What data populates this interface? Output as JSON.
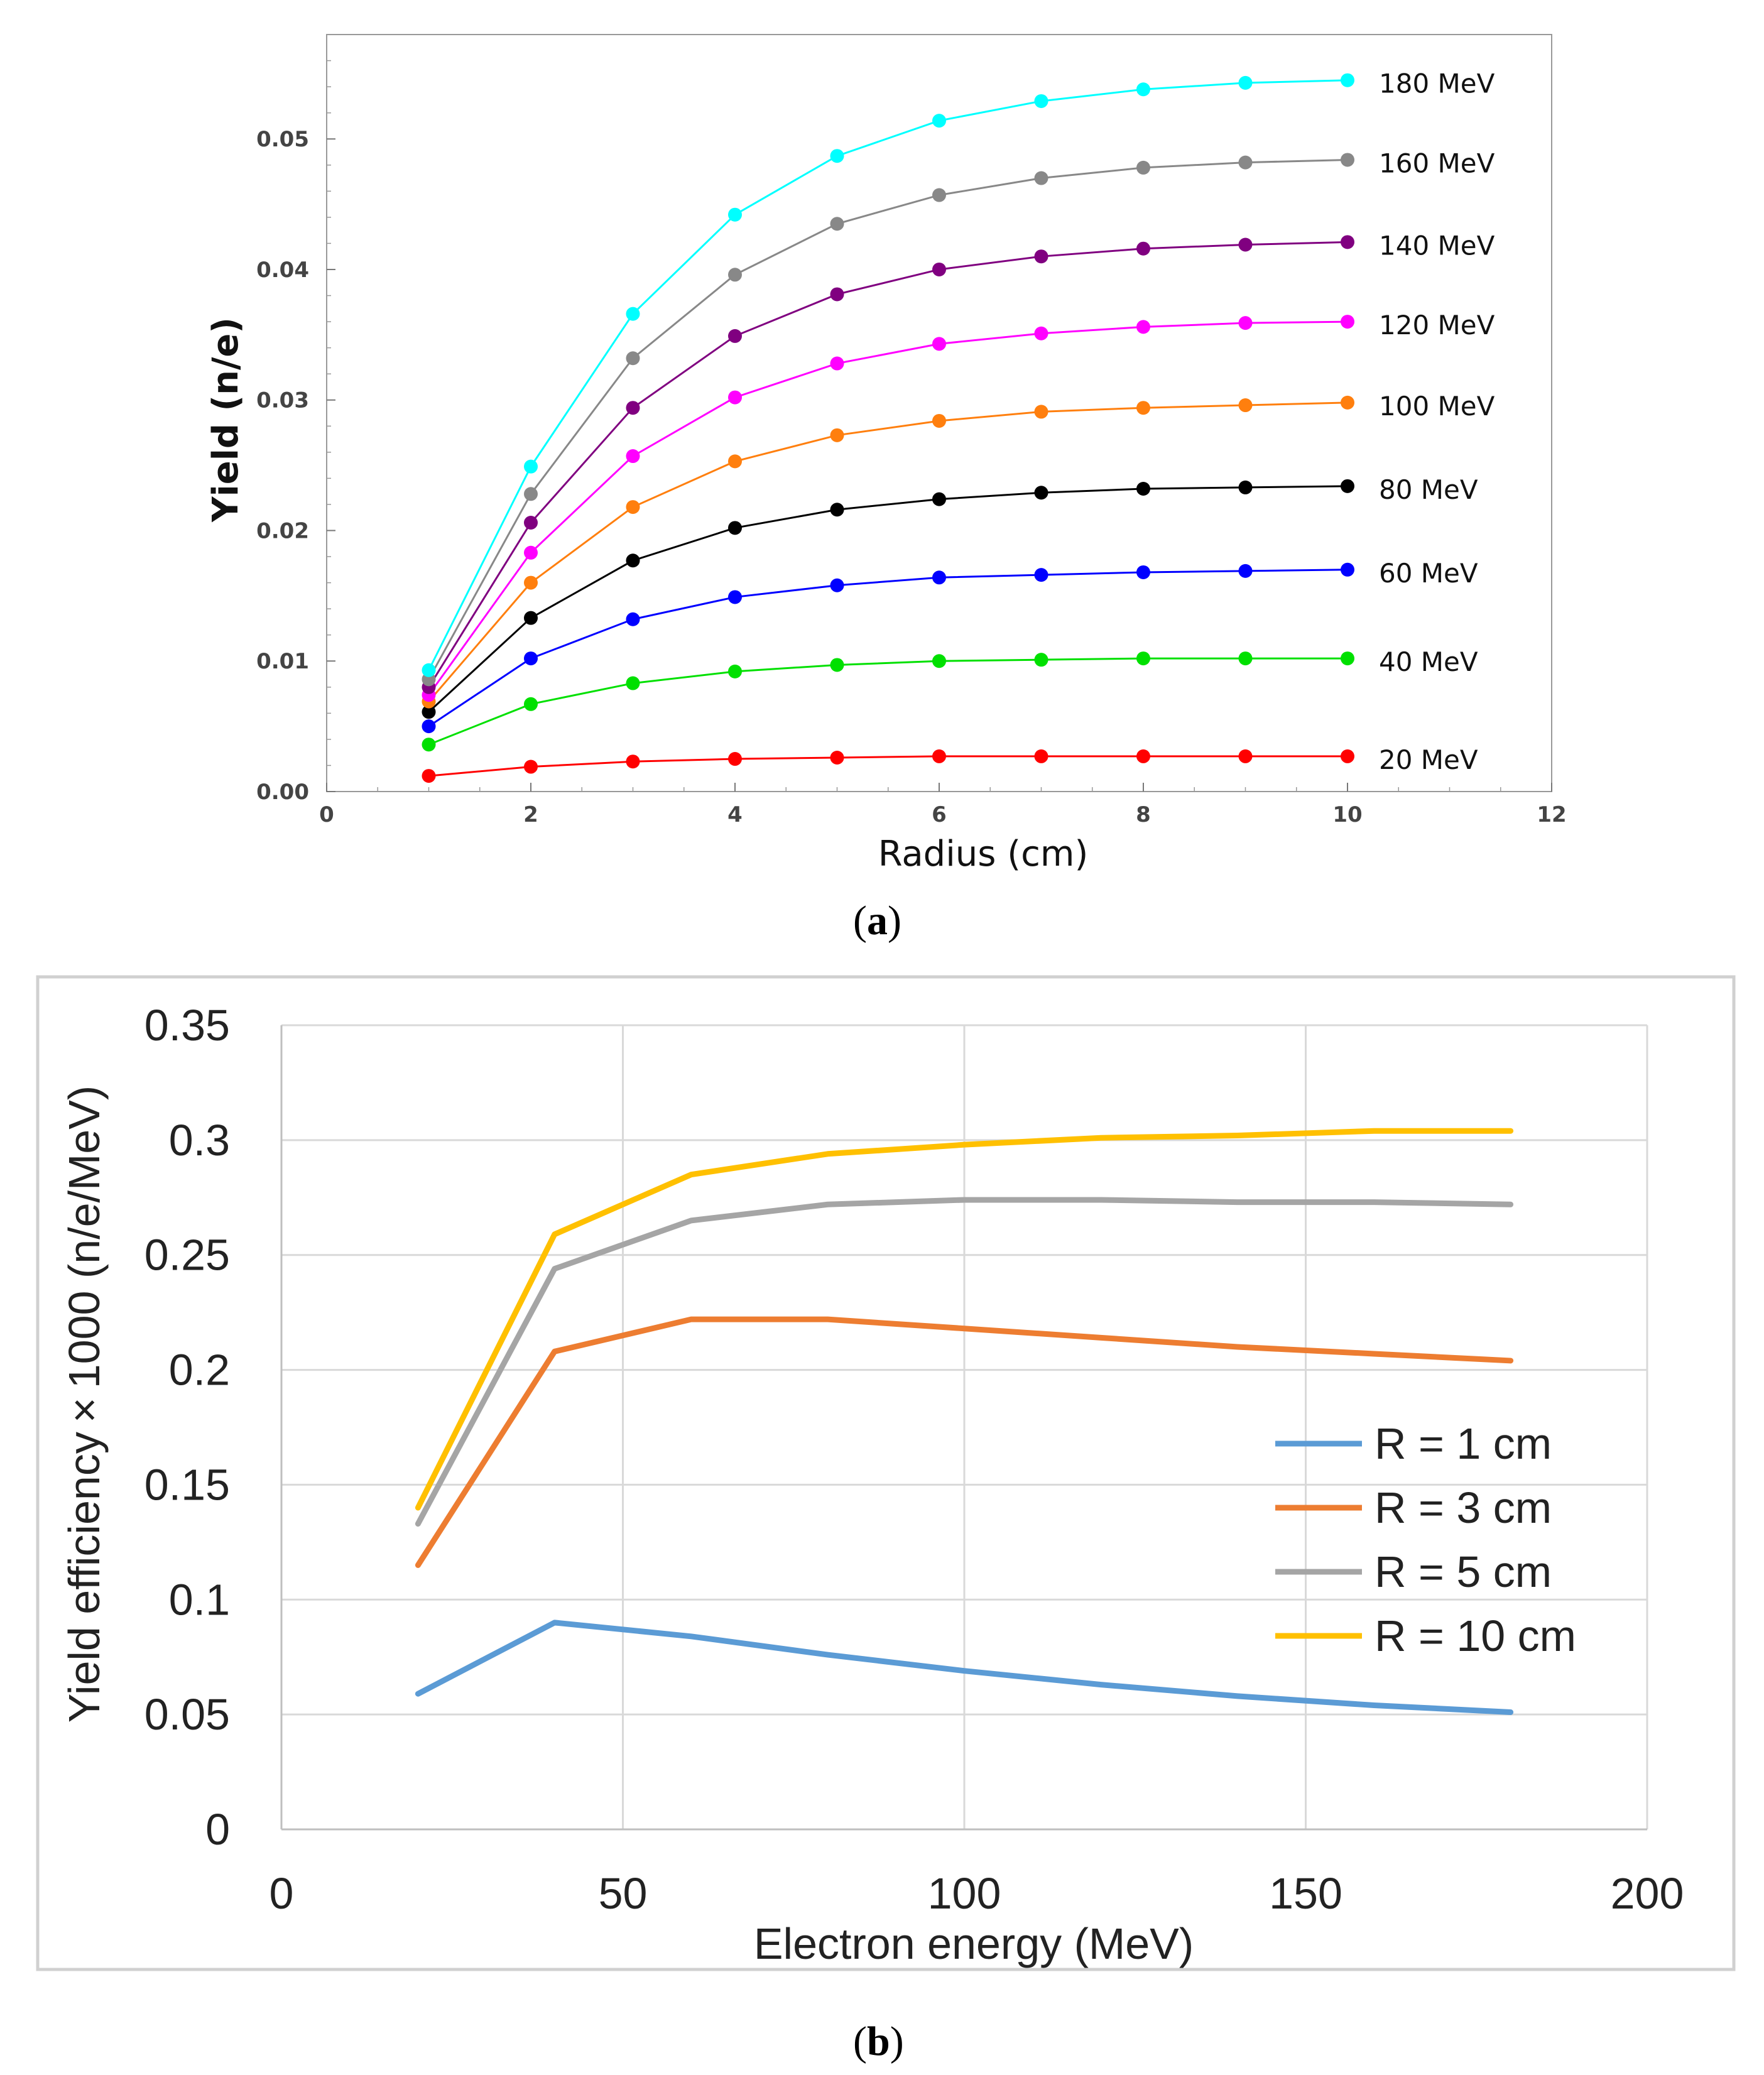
{
  "panel_a": {
    "caption_open": "(",
    "caption_letter": "a",
    "caption_close": ")"
  },
  "panel_b": {
    "caption_open": "(",
    "caption_letter": "b",
    "caption_close": ")"
  },
  "chart_data": [
    {
      "type": "line",
      "title": "",
      "xlabel": "Radius (cm)",
      "ylabel": "Yield (n/e)",
      "xlim": [
        0,
        12
      ],
      "ylim": [
        0,
        0.058
      ],
      "xticks": [
        0,
        2,
        4,
        6,
        8,
        10,
        12
      ],
      "xtick_labels": [
        "0",
        "2",
        "4",
        "6",
        "8",
        "10",
        "12"
      ],
      "yticks": [
        0,
        0.01,
        0.02,
        0.03,
        0.04,
        0.05
      ],
      "ytick_labels": [
        "0.00",
        "0.01",
        "0.02",
        "0.03",
        "0.04",
        "0.05"
      ],
      "grid": false,
      "markers": true,
      "x": [
        1,
        2,
        3,
        4,
        5,
        6,
        7,
        8,
        9,
        10
      ],
      "series": [
        {
          "name": "20 MeV",
          "color": "#ff0000",
          "values": [
            0.0012,
            0.0019,
            0.0023,
            0.0025,
            0.0026,
            0.0027,
            0.0027,
            0.0027,
            0.0027,
            0.0027
          ]
        },
        {
          "name": "40 MeV",
          "color": "#00e000",
          "values": [
            0.0036,
            0.0067,
            0.0083,
            0.0092,
            0.0097,
            0.01,
            0.0101,
            0.0102,
            0.0102,
            0.0102
          ]
        },
        {
          "name": "60 MeV",
          "color": "#0000ff",
          "values": [
            0.005,
            0.0102,
            0.0132,
            0.0149,
            0.0158,
            0.0164,
            0.0166,
            0.0168,
            0.0169,
            0.017
          ]
        },
        {
          "name": "80 MeV",
          "color": "#000000",
          "values": [
            0.0061,
            0.0133,
            0.0177,
            0.0202,
            0.0216,
            0.0224,
            0.0229,
            0.0232,
            0.0233,
            0.0234
          ]
        },
        {
          "name": "100 MeV",
          "color": "#ff7f0e",
          "values": [
            0.0069,
            0.016,
            0.0218,
            0.0253,
            0.0273,
            0.0284,
            0.0291,
            0.0294,
            0.0296,
            0.0298
          ]
        },
        {
          "name": "120 MeV",
          "color": "#ff00ff",
          "values": [
            0.0074,
            0.0183,
            0.0257,
            0.0302,
            0.0328,
            0.0343,
            0.0351,
            0.0356,
            0.0359,
            0.036
          ]
        },
        {
          "name": "140 MeV",
          "color": "#800080",
          "values": [
            0.008,
            0.0206,
            0.0294,
            0.0349,
            0.0381,
            0.04,
            0.041,
            0.0416,
            0.0419,
            0.0421
          ]
        },
        {
          "name": "160 MeV",
          "color": "#888888",
          "values": [
            0.0086,
            0.0228,
            0.0332,
            0.0396,
            0.0435,
            0.0457,
            0.047,
            0.0478,
            0.0482,
            0.0484
          ]
        },
        {
          "name": "180 MeV",
          "color": "#00ffff",
          "values": [
            0.0093,
            0.0249,
            0.0366,
            0.0442,
            0.0487,
            0.0514,
            0.0529,
            0.0538,
            0.0543,
            0.0545
          ]
        }
      ]
    },
    {
      "type": "line",
      "title": "",
      "xlabel": "Electron energy (MeV)",
      "ylabel": "Yield efficiency × 1000 (n/e/MeV)",
      "xlim": [
        0,
        200
      ],
      "ylim": [
        0,
        0.35
      ],
      "xticks": [
        0,
        50,
        100,
        150,
        200
      ],
      "xtick_labels": [
        "0",
        "50",
        "100",
        "150",
        "200"
      ],
      "yticks": [
        0,
        0.05,
        0.1,
        0.15,
        0.2,
        0.25,
        0.3,
        0.35
      ],
      "ytick_labels": [
        "0",
        "0.05",
        "0.1",
        "0.15",
        "0.2",
        "0.25",
        "0.3",
        "0.35"
      ],
      "grid": true,
      "legend": "right",
      "x": [
        20,
        40,
        60,
        80,
        100,
        120,
        140,
        160,
        180
      ],
      "series": [
        {
          "name": "R = 1 cm",
          "color": "#5b9bd5",
          "values": [
            0.059,
            0.09,
            0.084,
            0.076,
            0.069,
            0.063,
            0.058,
            0.054,
            0.051
          ]
        },
        {
          "name": "R = 3 cm",
          "color": "#ed7d31",
          "values": [
            0.115,
            0.208,
            0.222,
            0.222,
            0.218,
            0.214,
            0.21,
            0.207,
            0.204
          ]
        },
        {
          "name": "R = 5 cm",
          "color": "#a5a5a5",
          "values": [
            0.133,
            0.244,
            0.265,
            0.272,
            0.274,
            0.274,
            0.273,
            0.273,
            0.272
          ]
        },
        {
          "name": "R = 10 cm",
          "color": "#ffc000",
          "values": [
            0.14,
            0.259,
            0.285,
            0.294,
            0.298,
            0.301,
            0.302,
            0.304,
            0.304
          ]
        }
      ]
    }
  ]
}
